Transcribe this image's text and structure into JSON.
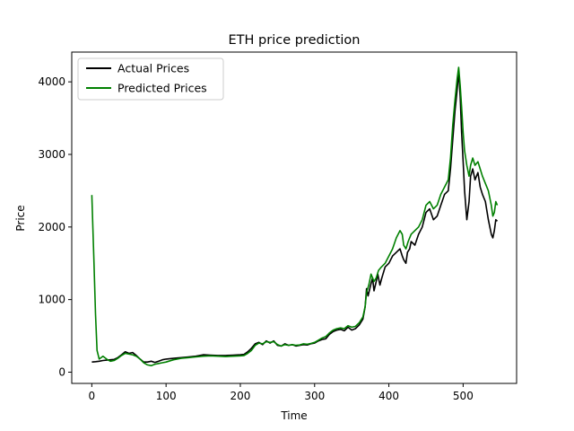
{
  "chart_data": {
    "type": "line",
    "title": "ETH price prediction",
    "xlabel": "Time",
    "ylabel": "Price",
    "xlim": [
      -27,
      572
    ],
    "ylim": [
      -155,
      4410
    ],
    "xticks": [
      0,
      100,
      200,
      300,
      400,
      500
    ],
    "yticks": [
      0,
      1000,
      2000,
      3000,
      4000
    ],
    "grid": false,
    "legend_position": "top-left",
    "series": [
      {
        "name": "Actual Prices",
        "color": "#000000",
        "points": [
          [
            0,
            140
          ],
          [
            5,
            145
          ],
          [
            10,
            150
          ],
          [
            15,
            160
          ],
          [
            20,
            165
          ],
          [
            25,
            170
          ],
          [
            30,
            175
          ],
          [
            35,
            200
          ],
          [
            40,
            240
          ],
          [
            45,
            280
          ],
          [
            50,
            260
          ],
          [
            55,
            270
          ],
          [
            60,
            230
          ],
          [
            65,
            180
          ],
          [
            70,
            140
          ],
          [
            75,
            140
          ],
          [
            80,
            150
          ],
          [
            85,
            135
          ],
          [
            90,
            150
          ],
          [
            95,
            170
          ],
          [
            100,
            180
          ],
          [
            110,
            190
          ],
          [
            120,
            200
          ],
          [
            130,
            210
          ],
          [
            140,
            220
          ],
          [
            150,
            240
          ],
          [
            160,
            235
          ],
          [
            170,
            230
          ],
          [
            180,
            230
          ],
          [
            190,
            235
          ],
          [
            200,
            240
          ],
          [
            205,
            245
          ],
          [
            210,
            280
          ],
          [
            215,
            330
          ],
          [
            220,
            390
          ],
          [
            225,
            410
          ],
          [
            230,
            380
          ],
          [
            235,
            430
          ],
          [
            240,
            400
          ],
          [
            245,
            430
          ],
          [
            250,
            370
          ],
          [
            255,
            360
          ],
          [
            260,
            390
          ],
          [
            265,
            370
          ],
          [
            270,
            380
          ],
          [
            275,
            360
          ],
          [
            280,
            370
          ],
          [
            285,
            380
          ],
          [
            290,
            375
          ],
          [
            295,
            390
          ],
          [
            300,
            400
          ],
          [
            305,
            430
          ],
          [
            310,
            450
          ],
          [
            315,
            460
          ],
          [
            320,
            520
          ],
          [
            325,
            560
          ],
          [
            330,
            580
          ],
          [
            335,
            590
          ],
          [
            340,
            570
          ],
          [
            345,
            620
          ],
          [
            350,
            580
          ],
          [
            355,
            600
          ],
          [
            360,
            650
          ],
          [
            365,
            730
          ],
          [
            368,
            900
          ],
          [
            370,
            1150
          ],
          [
            372,
            1050
          ],
          [
            375,
            1180
          ],
          [
            378,
            1300
          ],
          [
            380,
            1120
          ],
          [
            383,
            1250
          ],
          [
            385,
            1350
          ],
          [
            388,
            1200
          ],
          [
            390,
            1280
          ],
          [
            395,
            1450
          ],
          [
            400,
            1500
          ],
          [
            405,
            1600
          ],
          [
            410,
            1650
          ],
          [
            415,
            1700
          ],
          [
            418,
            1600
          ],
          [
            420,
            1550
          ],
          [
            423,
            1500
          ],
          [
            425,
            1650
          ],
          [
            428,
            1700
          ],
          [
            430,
            1800
          ],
          [
            435,
            1750
          ],
          [
            440,
            1900
          ],
          [
            445,
            2000
          ],
          [
            450,
            2200
          ],
          [
            455,
            2250
          ],
          [
            460,
            2100
          ],
          [
            465,
            2150
          ],
          [
            470,
            2300
          ],
          [
            475,
            2450
          ],
          [
            480,
            2500
          ],
          [
            483,
            2800
          ],
          [
            486,
            3200
          ],
          [
            489,
            3600
          ],
          [
            492,
            3900
          ],
          [
            494,
            4150
          ],
          [
            496,
            3800
          ],
          [
            498,
            3300
          ],
          [
            500,
            2900
          ],
          [
            502,
            2500
          ],
          [
            505,
            2100
          ],
          [
            508,
            2350
          ],
          [
            510,
            2700
          ],
          [
            513,
            2800
          ],
          [
            516,
            2650
          ],
          [
            520,
            2750
          ],
          [
            523,
            2550
          ],
          [
            526,
            2450
          ],
          [
            530,
            2350
          ],
          [
            534,
            2100
          ],
          [
            538,
            1900
          ],
          [
            540,
            1850
          ],
          [
            542,
            1950
          ],
          [
            544,
            2100
          ],
          [
            546,
            2080
          ]
        ]
      },
      {
        "name": "Predicted Prices",
        "color": "#008000",
        "points": [
          [
            0,
            2440
          ],
          [
            3,
            1500
          ],
          [
            5,
            800
          ],
          [
            7,
            300
          ],
          [
            10,
            180
          ],
          [
            15,
            220
          ],
          [
            20,
            180
          ],
          [
            25,
            150
          ],
          [
            30,
            160
          ],
          [
            35,
            190
          ],
          [
            40,
            230
          ],
          [
            45,
            260
          ],
          [
            50,
            250
          ],
          [
            55,
            240
          ],
          [
            60,
            220
          ],
          [
            65,
            180
          ],
          [
            70,
            130
          ],
          [
            75,
            100
          ],
          [
            80,
            90
          ],
          [
            85,
            110
          ],
          [
            90,
            120
          ],
          [
            95,
            130
          ],
          [
            100,
            140
          ],
          [
            110,
            170
          ],
          [
            120,
            190
          ],
          [
            130,
            200
          ],
          [
            140,
            210
          ],
          [
            150,
            220
          ],
          [
            160,
            225
          ],
          [
            170,
            220
          ],
          [
            180,
            215
          ],
          [
            190,
            220
          ],
          [
            200,
            225
          ],
          [
            205,
            230
          ],
          [
            210,
            260
          ],
          [
            215,
            300
          ],
          [
            220,
            370
          ],
          [
            225,
            400
          ],
          [
            230,
            390
          ],
          [
            235,
            420
          ],
          [
            240,
            410
          ],
          [
            245,
            420
          ],
          [
            250,
            380
          ],
          [
            255,
            360
          ],
          [
            260,
            380
          ],
          [
            265,
            370
          ],
          [
            270,
            380
          ],
          [
            275,
            370
          ],
          [
            280,
            375
          ],
          [
            285,
            390
          ],
          [
            290,
            385
          ],
          [
            295,
            395
          ],
          [
            300,
            410
          ],
          [
            305,
            440
          ],
          [
            310,
            470
          ],
          [
            315,
            490
          ],
          [
            320,
            540
          ],
          [
            325,
            580
          ],
          [
            330,
            600
          ],
          [
            335,
            610
          ],
          [
            340,
            600
          ],
          [
            345,
            640
          ],
          [
            350,
            620
          ],
          [
            355,
            630
          ],
          [
            360,
            680
          ],
          [
            365,
            760
          ],
          [
            368,
            900
          ],
          [
            370,
            1100
          ],
          [
            373,
            1200
          ],
          [
            376,
            1350
          ],
          [
            380,
            1250
          ],
          [
            383,
            1300
          ],
          [
            386,
            1400
          ],
          [
            390,
            1450
          ],
          [
            395,
            1500
          ],
          [
            400,
            1600
          ],
          [
            405,
            1700
          ],
          [
            410,
            1850
          ],
          [
            415,
            1950
          ],
          [
            418,
            1900
          ],
          [
            420,
            1750
          ],
          [
            423,
            1700
          ],
          [
            426,
            1800
          ],
          [
            430,
            1900
          ],
          [
            435,
            1950
          ],
          [
            440,
            2000
          ],
          [
            445,
            2100
          ],
          [
            450,
            2300
          ],
          [
            455,
            2350
          ],
          [
            460,
            2250
          ],
          [
            465,
            2300
          ],
          [
            470,
            2450
          ],
          [
            475,
            2550
          ],
          [
            480,
            2650
          ],
          [
            483,
            2950
          ],
          [
            486,
            3400
          ],
          [
            489,
            3750
          ],
          [
            492,
            4050
          ],
          [
            494,
            4200
          ],
          [
            496,
            3950
          ],
          [
            498,
            3650
          ],
          [
            500,
            3300
          ],
          [
            502,
            3050
          ],
          [
            505,
            2850
          ],
          [
            508,
            2700
          ],
          [
            510,
            2850
          ],
          [
            513,
            2950
          ],
          [
            516,
            2850
          ],
          [
            520,
            2900
          ],
          [
            523,
            2800
          ],
          [
            526,
            2700
          ],
          [
            530,
            2600
          ],
          [
            534,
            2500
          ],
          [
            538,
            2300
          ],
          [
            540,
            2150
          ],
          [
            542,
            2200
          ],
          [
            544,
            2350
          ],
          [
            546,
            2300
          ]
        ]
      }
    ]
  }
}
